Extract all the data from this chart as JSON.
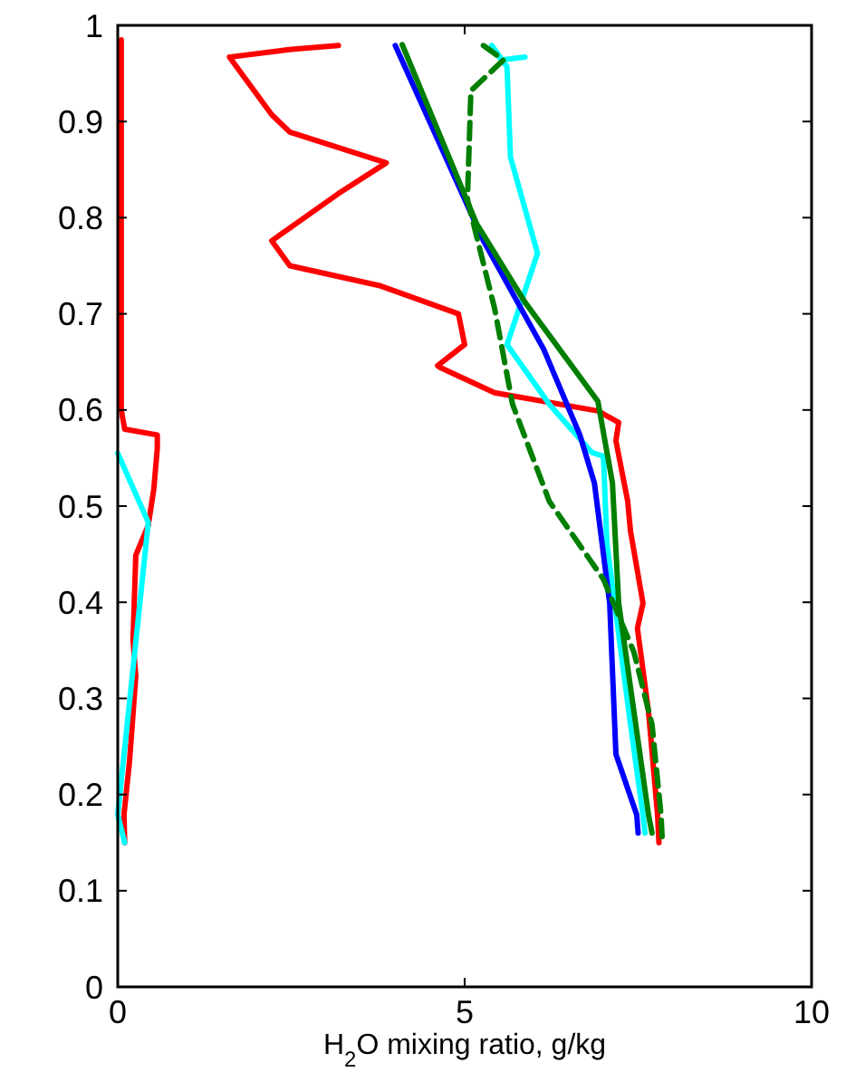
{
  "chart_data": {
    "type": "line",
    "xlabel": "H$_{2}$O mixing ratio, g/kg",
    "xlim": [
      0,
      10
    ],
    "xticks": [
      0,
      5,
      10
    ],
    "ylim": [
      0,
      1
    ],
    "yticks": [
      0,
      0.1,
      0.2,
      0.3,
      0.4,
      0.5,
      0.6,
      0.7,
      0.8,
      0.9,
      1
    ],
    "grid": false,
    "series": [
      {
        "color": "#ff0000",
        "line_style": "solid",
        "x": [
          0.05,
          0.05,
          0.05,
          0.1,
          0.57,
          0.57,
          0.52,
          0.44,
          0.26,
          0.22,
          0.26,
          0.17,
          0.09,
          0.1
        ],
        "values": [
          0.985,
          0.8,
          0.6,
          0.58,
          0.574,
          0.56,
          0.518,
          0.48,
          0.449,
          0.361,
          0.323,
          0.235,
          0.179,
          0.15
        ]
      },
      {
        "color": "#ff0000",
        "line_style": "solid",
        "x": [
          3.18,
          2.5,
          1.61,
          2.22,
          2.48,
          3.87,
          3.18,
          2.22,
          2.48,
          3.79,
          4.91,
          5.0,
          4.61,
          4.65,
          5.43,
          6.92,
          7.22,
          7.18,
          7.35,
          7.39,
          7.57,
          7.49,
          7.65,
          7.78,
          7.8
        ],
        "values": [
          0.979,
          0.975,
          0.967,
          0.907,
          0.889,
          0.857,
          0.825,
          0.776,
          0.75,
          0.729,
          0.7,
          0.668,
          0.646,
          0.644,
          0.618,
          0.599,
          0.587,
          0.568,
          0.505,
          0.474,
          0.399,
          0.373,
          0.286,
          0.179,
          0.15
        ]
      },
      {
        "color": "#00ffff",
        "line_style": "solid",
        "x": [
          0.0,
          0.44,
          0.0,
          0.1
        ],
        "values": [
          0.555,
          0.483,
          0.179,
          0.15
        ]
      },
      {
        "color": "#00ffff",
        "line_style": "solid",
        "x": [
          5.87,
          5.53,
          5.39,
          5.61,
          5.66,
          6.05,
          5.61,
          6.22,
          6.83,
          7.0,
          7.05,
          7.22,
          7.39,
          7.57,
          7.6
        ],
        "values": [
          0.967,
          0.964,
          0.979,
          0.957,
          0.863,
          0.763,
          0.668,
          0.606,
          0.556,
          0.552,
          0.461,
          0.367,
          0.273,
          0.179,
          0.16
        ]
      },
      {
        "color": "#0000ff",
        "line_style": "solid",
        "x": [
          4.0,
          5.27,
          6.14,
          6.66,
          6.87,
          7.09,
          7.18,
          7.48,
          7.5
        ],
        "values": [
          0.979,
          0.776,
          0.663,
          0.574,
          0.524,
          0.399,
          0.242,
          0.179,
          0.16
        ]
      },
      {
        "color": "#007f00",
        "line_style": "solid",
        "x": [
          4.1,
          5.17,
          5.87,
          6.92,
          7.13,
          7.22,
          7.44,
          7.65,
          7.7
        ],
        "values": [
          0.98,
          0.794,
          0.712,
          0.609,
          0.524,
          0.399,
          0.286,
          0.179,
          0.16
        ]
      },
      {
        "color": "#007f00",
        "line_style": "dashed",
        "x": [
          5.27,
          5.56,
          5.09,
          5.04,
          5.43,
          5.69,
          6.22,
          7.0,
          7.44,
          7.7,
          7.83,
          7.85
        ],
        "values": [
          0.979,
          0.964,
          0.932,
          0.819,
          0.706,
          0.606,
          0.505,
          0.424,
          0.348,
          0.273,
          0.179,
          0.15
        ]
      }
    ]
  }
}
